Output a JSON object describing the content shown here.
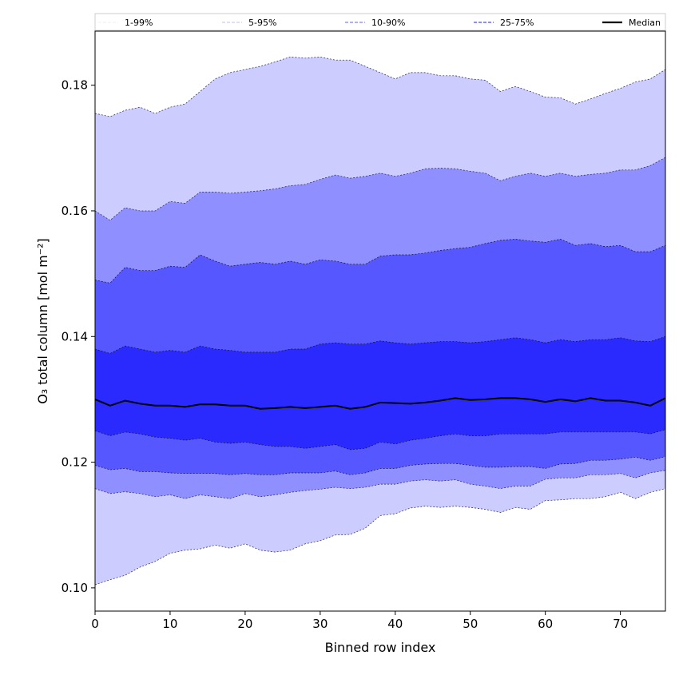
{
  "chart_data": {
    "type": "area",
    "title": "",
    "xlabel": "Binned row index",
    "ylabel": "O₃ total column [mol m⁻²]",
    "xlim": [
      0,
      76
    ],
    "ylim": [
      0.0963,
      0.1886
    ],
    "xticks": [
      0,
      10,
      20,
      30,
      40,
      50,
      60,
      70
    ],
    "xtick_labels": [
      "0",
      "10",
      "20",
      "30",
      "40",
      "50",
      "60",
      "70"
    ],
    "yticks": [
      0.1,
      0.12,
      0.14,
      0.16,
      0.18
    ],
    "ytick_labels": [
      "0.10",
      "0.12",
      "0.14",
      "0.16",
      "0.18"
    ],
    "legend_placement": "top, above plot",
    "x": [
      0,
      2,
      4,
      6,
      8,
      10,
      12,
      14,
      16,
      18,
      20,
      22,
      24,
      26,
      28,
      30,
      32,
      34,
      36,
      38,
      40,
      42,
      44,
      46,
      48,
      50,
      52,
      54,
      56,
      58,
      60,
      62,
      64,
      66,
      68,
      70,
      72,
      74,
      76
    ],
    "percentiles": {
      "p1": [
        0.1005,
        0.1013,
        0.102,
        0.1033,
        0.1042,
        0.1055,
        0.106,
        0.1062,
        0.1068,
        0.1063,
        0.107,
        0.106,
        0.1057,
        0.106,
        0.107,
        0.1075,
        0.1084,
        0.1085,
        0.1095,
        0.1115,
        0.1118,
        0.1127,
        0.113,
        0.1128,
        0.113,
        0.1128,
        0.1125,
        0.112,
        0.1128,
        0.1125,
        0.1139,
        0.114,
        0.1142,
        0.1142,
        0.1145,
        0.1152,
        0.1142,
        0.1152,
        0.1158
      ],
      "p5": [
        0.1158,
        0.115,
        0.1153,
        0.115,
        0.1145,
        0.1148,
        0.1142,
        0.1148,
        0.1145,
        0.1142,
        0.115,
        0.1145,
        0.1148,
        0.1152,
        0.1155,
        0.1157,
        0.116,
        0.1158,
        0.116,
        0.1165,
        0.1165,
        0.117,
        0.1172,
        0.117,
        0.1172,
        0.1165,
        0.1162,
        0.1158,
        0.1162,
        0.1162,
        0.1173,
        0.1175,
        0.1175,
        0.118,
        0.118,
        0.1182,
        0.1175,
        0.1183,
        0.1187
      ],
      "p10": [
        0.1195,
        0.1188,
        0.119,
        0.1185,
        0.1185,
        0.1183,
        0.1182,
        0.1182,
        0.1182,
        0.118,
        0.1182,
        0.118,
        0.118,
        0.1183,
        0.1183,
        0.1183,
        0.1186,
        0.118,
        0.1183,
        0.119,
        0.119,
        0.1195,
        0.1197,
        0.1198,
        0.1198,
        0.1195,
        0.1192,
        0.1192,
        0.1193,
        0.1193,
        0.119,
        0.1197,
        0.1198,
        0.1203,
        0.1203,
        0.1205,
        0.1208,
        0.1203,
        0.1209
      ],
      "p25": [
        0.125,
        0.1242,
        0.1248,
        0.1245,
        0.124,
        0.1238,
        0.1235,
        0.1238,
        0.1232,
        0.123,
        0.1232,
        0.1228,
        0.1225,
        0.1225,
        0.1222,
        0.1225,
        0.1228,
        0.122,
        0.1222,
        0.1232,
        0.1229,
        0.1235,
        0.1238,
        0.1242,
        0.1245,
        0.1242,
        0.1242,
        0.1245,
        0.1245,
        0.1245,
        0.1245,
        0.1248,
        0.1248,
        0.1248,
        0.1248,
        0.1248,
        0.1248,
        0.1245,
        0.1252
      ],
      "median": [
        0.13,
        0.129,
        0.1298,
        0.1293,
        0.129,
        0.129,
        0.1288,
        0.1292,
        0.1292,
        0.129,
        0.129,
        0.1285,
        0.1286,
        0.1288,
        0.1286,
        0.1288,
        0.129,
        0.1285,
        0.1288,
        0.1295,
        0.1294,
        0.1293,
        0.1295,
        0.1298,
        0.1302,
        0.1299,
        0.13,
        0.1302,
        0.1302,
        0.13,
        0.1296,
        0.13,
        0.1297,
        0.1302,
        0.1298,
        0.1298,
        0.1295,
        0.129,
        0.1302
      ],
      "p75": [
        0.138,
        0.1373,
        0.1385,
        0.138,
        0.1375,
        0.1378,
        0.1375,
        0.1385,
        0.138,
        0.1378,
        0.1375,
        0.1375,
        0.1375,
        0.138,
        0.138,
        0.1388,
        0.139,
        0.1388,
        0.1388,
        0.1393,
        0.139,
        0.1388,
        0.139,
        0.1392,
        0.1392,
        0.139,
        0.1392,
        0.1395,
        0.1398,
        0.1395,
        0.139,
        0.1395,
        0.1392,
        0.1395,
        0.1395,
        0.1398,
        0.1393,
        0.1392,
        0.14
      ],
      "p90": [
        0.149,
        0.1485,
        0.151,
        0.1505,
        0.1505,
        0.1512,
        0.151,
        0.153,
        0.152,
        0.1512,
        0.1515,
        0.1518,
        0.1515,
        0.152,
        0.1515,
        0.1522,
        0.152,
        0.1515,
        0.1515,
        0.1528,
        0.153,
        0.153,
        0.1533,
        0.1537,
        0.154,
        0.1542,
        0.1548,
        0.1553,
        0.1555,
        0.1552,
        0.155,
        0.1555,
        0.1545,
        0.1548,
        0.1543,
        0.1545,
        0.1535,
        0.1535,
        0.1545
      ],
      "p95": [
        0.16,
        0.1585,
        0.1605,
        0.16,
        0.16,
        0.1615,
        0.1612,
        0.163,
        0.163,
        0.1628,
        0.163,
        0.1632,
        0.1635,
        0.164,
        0.1642,
        0.165,
        0.1657,
        0.1652,
        0.1655,
        0.166,
        0.1655,
        0.166,
        0.1667,
        0.1668,
        0.1667,
        0.1663,
        0.166,
        0.1648,
        0.1655,
        0.166,
        0.1655,
        0.166,
        0.1655,
        0.1658,
        0.166,
        0.1665,
        0.1665,
        0.1672,
        0.1685
      ],
      "p99": [
        0.1755,
        0.175,
        0.176,
        0.1765,
        0.1755,
        0.1765,
        0.177,
        0.179,
        0.181,
        0.182,
        0.1825,
        0.183,
        0.1837,
        0.1845,
        0.1843,
        0.1845,
        0.184,
        0.184,
        0.183,
        0.182,
        0.181,
        0.182,
        0.182,
        0.1815,
        0.1815,
        0.181,
        0.1808,
        0.179,
        0.1798,
        0.179,
        0.1781,
        0.178,
        0.177,
        0.1778,
        0.1787,
        0.1795,
        0.1805,
        0.181,
        0.1825
      ]
    },
    "bands": [
      {
        "name": "1-99%",
        "low": "p1",
        "high": "p99",
        "fill": "#ccccff",
        "line": "#ccccff"
      },
      {
        "name": "5-95%",
        "low": "p5",
        "high": "p95",
        "fill": "#8f8fff",
        "line": "#9999ee"
      },
      {
        "name": "10-90%",
        "low": "p10",
        "high": "p90",
        "fill": "#5757ff",
        "line": "#9090ff"
      },
      {
        "name": "25-75%",
        "low": "p25",
        "high": "p75",
        "fill": "#2a2aff",
        "line": "#6a6aff"
      }
    ],
    "median": {
      "name": "Median",
      "color": "#000000"
    }
  }
}
